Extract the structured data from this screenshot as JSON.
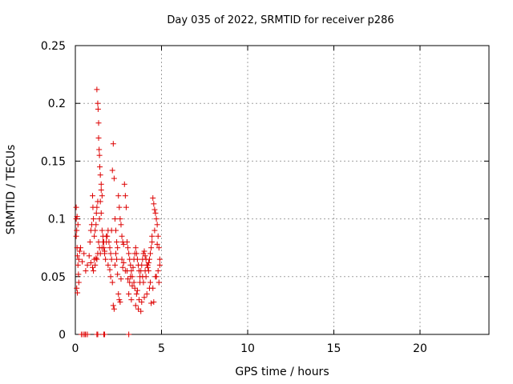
{
  "chart_data": {
    "type": "scatter",
    "title": "Day 035 of 2022, SRMTID for receiver p286",
    "xlabel": "GPS time / hours",
    "ylabel": "SRMTID / TECUs",
    "xlim": [
      0,
      24
    ],
    "ylim": [
      0,
      0.25
    ],
    "xticks": [
      0,
      5,
      10,
      15,
      20
    ],
    "xtick_labels": [
      "0",
      "5",
      "10",
      "15",
      "20"
    ],
    "yticks": [
      0,
      0.05,
      0.1,
      0.15,
      0.2,
      0.25
    ],
    "ytick_labels": [
      "0",
      "0.05",
      "0.1",
      "0.15",
      "0.2",
      "0.25"
    ],
    "grid": true,
    "marker": "+",
    "color": "#dd0000",
    "series": [
      {
        "name": "SRMTID",
        "x": [
          0.05,
          0.05,
          0.08,
          0.1,
          0.12,
          0.15,
          0.18,
          0.2,
          0.25,
          0.05,
          0.1,
          0.15,
          0.2,
          0.08,
          0.12,
          0.3,
          0.4,
          0.5,
          0.6,
          0.7,
          0.8,
          0.85,
          0.9,
          0.95,
          1.0,
          1.02,
          1.05,
          1.1,
          1.15,
          1.2,
          1.22,
          1.25,
          1.3,
          1.3,
          1.35,
          1.4,
          1.45,
          1.5,
          1.55,
          1.6,
          1.65,
          1.7,
          1.75,
          1.8,
          1.85,
          1.9,
          1.25,
          1.3,
          1.32,
          1.35,
          1.35,
          1.38,
          1.4,
          1.42,
          1.45,
          1.5,
          1.5,
          1.55,
          1.95,
          2.0,
          2.05,
          2.1,
          2.15,
          2.2,
          2.25,
          2.3,
          2.35,
          2.4,
          2.45,
          2.5,
          2.55,
          2.6,
          2.65,
          2.7,
          2.75,
          2.8,
          2.85,
          2.9,
          2.95,
          2.2,
          2.25,
          2.5,
          2.55,
          2.6,
          3.0,
          3.05,
          3.1,
          3.15,
          3.2,
          3.25,
          3.3,
          3.35,
          3.4,
          3.45,
          3.5,
          3.55,
          3.6,
          3.65,
          3.7,
          3.75,
          3.8,
          3.85,
          3.9,
          3.95,
          4.0,
          4.05,
          4.1,
          4.15,
          4.2,
          4.25,
          4.3,
          4.35,
          4.4,
          4.45,
          4.5,
          4.55,
          4.6,
          4.65,
          4.7,
          4.75,
          4.8,
          4.85,
          4.9,
          1.05,
          1.15,
          1.25,
          1.45,
          1.55,
          1.65,
          2.05,
          2.15,
          2.3,
          2.4,
          2.75,
          2.9,
          3.05,
          3.15,
          3.3,
          3.45,
          3.6,
          3.75,
          3.9,
          4.05,
          4.2,
          4.35,
          4.5,
          4.65,
          4.8,
          1.1,
          1.4,
          1.6,
          1.8,
          2.1,
          2.35,
          2.7,
          3.0,
          3.2,
          3.4,
          3.55,
          3.7,
          3.85,
          4.0,
          4.15,
          4.3,
          4.45,
          4.6,
          4.75,
          4.9,
          0.9,
          1.0,
          1.2,
          1.7,
          1.9,
          2.0,
          2.45,
          2.65,
          2.8,
          3.1,
          3.25,
          3.5,
          3.65,
          3.8,
          3.95,
          4.1,
          4.25,
          4.4,
          4.55,
          4.7,
          4.85,
          0.35,
          0.45,
          0.55,
          0.6,
          0.7,
          1.25,
          1.3,
          1.65,
          1.7,
          3.1
        ],
        "y": [
          0.1,
          0.085,
          0.09,
          0.075,
          0.068,
          0.06,
          0.052,
          0.045,
          0.072,
          0.11,
          0.102,
          0.095,
          0.065,
          0.04,
          0.036,
          0.075,
          0.063,
          0.07,
          0.055,
          0.06,
          0.068,
          0.08,
          0.09,
          0.095,
          0.12,
          0.11,
          0.1,
          0.085,
          0.09,
          0.095,
          0.105,
          0.11,
          0.115,
          0.07,
          0.08,
          0.1,
          0.115,
          0.105,
          0.09,
          0.085,
          0.075,
          0.07,
          0.065,
          0.08,
          0.085,
          0.09,
          0.212,
          0.2,
          0.195,
          0.183,
          0.17,
          0.16,
          0.155,
          0.145,
          0.138,
          0.13,
          0.125,
          0.12,
          0.08,
          0.075,
          0.07,
          0.065,
          0.142,
          0.165,
          0.135,
          0.1,
          0.09,
          0.08,
          0.075,
          0.12,
          0.11,
          0.1,
          0.095,
          0.085,
          0.08,
          0.078,
          0.13,
          0.12,
          0.11,
          0.025,
          0.022,
          0.035,
          0.03,
          0.028,
          0.08,
          0.075,
          0.07,
          0.065,
          0.06,
          0.055,
          0.05,
          0.058,
          0.065,
          0.07,
          0.075,
          0.07,
          0.065,
          0.06,
          0.055,
          0.05,
          0.055,
          0.06,
          0.065,
          0.07,
          0.072,
          0.068,
          0.065,
          0.06,
          0.058,
          0.062,
          0.065,
          0.07,
          0.075,
          0.08,
          0.118,
          0.113,
          0.108,
          0.105,
          0.1,
          0.095,
          0.085,
          0.075,
          0.06,
          0.055,
          0.06,
          0.065,
          0.07,
          0.075,
          0.08,
          0.05,
          0.045,
          0.06,
          0.065,
          0.058,
          0.055,
          0.048,
          0.045,
          0.042,
          0.04,
          0.038,
          0.045,
          0.05,
          0.055,
          0.06,
          0.045,
          0.04,
          0.05,
          0.055,
          0.065,
          0.075,
          0.08,
          0.085,
          0.09,
          0.07,
          0.065,
          0.055,
          0.05,
          0.045,
          0.035,
          0.03,
          0.028,
          0.032,
          0.035,
          0.04,
          0.085,
          0.09,
          0.078,
          0.065,
          0.062,
          0.058,
          0.066,
          0.072,
          0.06,
          0.056,
          0.052,
          0.048,
          0.062,
          0.035,
          0.03,
          0.025,
          0.022,
          0.02,
          0.045,
          0.05,
          0.055,
          0.027,
          0.028,
          0.05,
          0.045,
          0,
          0,
          0,
          0,
          0,
          0,
          0,
          0,
          0,
          0
        ]
      }
    ]
  }
}
